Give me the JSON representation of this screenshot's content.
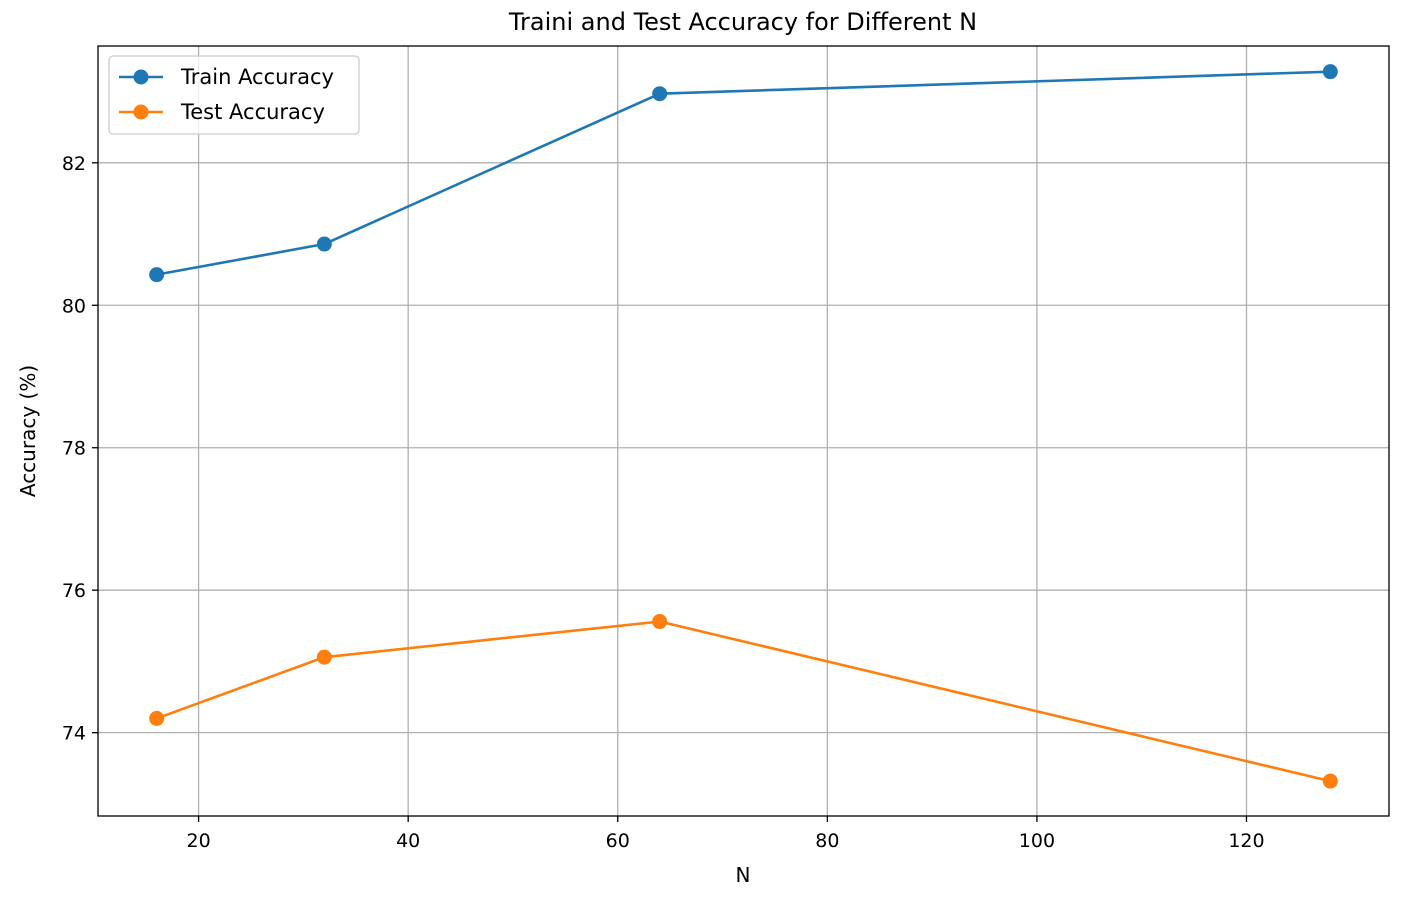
{
  "chart_data": {
    "type": "line",
    "title": "Traini and Test Accuracy for Different N",
    "xlabel": "N",
    "ylabel": "Accuracy (%)",
    "x": [
      16,
      32,
      64,
      128
    ],
    "xlim": [
      10.4,
      133.6
    ],
    "ylim": [
      72.83,
      83.64
    ],
    "xticks": [
      20,
      40,
      60,
      80,
      100,
      120
    ],
    "yticks": [
      74,
      76,
      78,
      80,
      82
    ],
    "grid": true,
    "legend_position": "upper-left",
    "series": [
      {
        "name": "Train Accuracy",
        "color": "#1f77b4",
        "values": [
          80.43,
          80.86,
          82.97,
          83.28
        ]
      },
      {
        "name": "Test Accuracy",
        "color": "#ff7f0e",
        "values": [
          74.2,
          75.06,
          75.56,
          73.32
        ]
      }
    ]
  }
}
